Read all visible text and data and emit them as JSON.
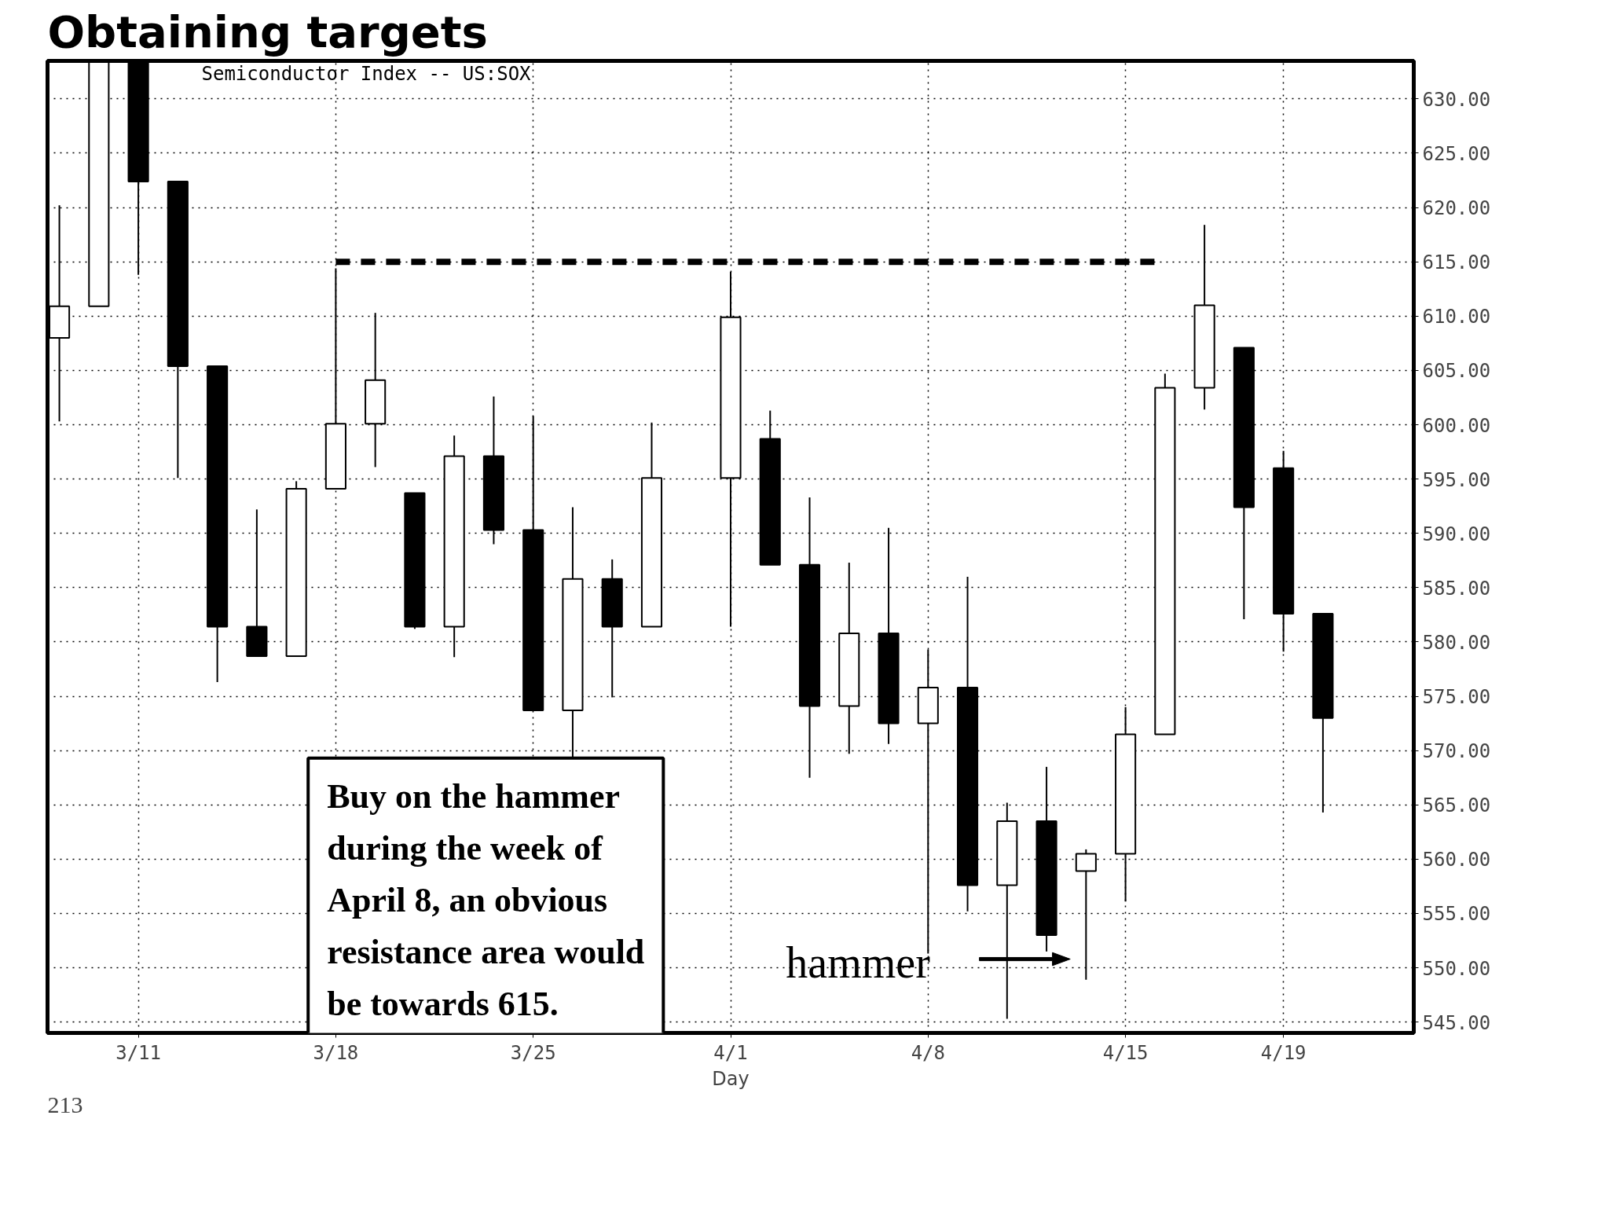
{
  "chart_data": {
    "type": "candlestick",
    "title": "Obtaining targets",
    "subtitle": "Semiconductor Index -- US:SOX",
    "xlabel": "Day",
    "categories": [
      null,
      null,
      "3/11",
      null,
      null,
      null,
      null,
      "3/18",
      null,
      null,
      null,
      null,
      "3/25",
      null,
      null,
      null,
      null,
      "4/1",
      null,
      null,
      null,
      null,
      "4/8",
      null,
      null,
      null,
      null,
      "4/15",
      null,
      null,
      null,
      "4/19",
      null
    ],
    "ohlc": [
      [
        608.0,
        620.2,
        600.3,
        610.9
      ],
      [
        610.9,
        633.4,
        610.9,
        633.4
      ],
      [
        633.4,
        633.4,
        613.8,
        622.4
      ],
      [
        622.4,
        622.4,
        595.1,
        605.4
      ],
      [
        605.4,
        605.4,
        576.3,
        581.4
      ],
      [
        581.4,
        592.2,
        578.7,
        578.7
      ],
      [
        578.7,
        594.8,
        578.7,
        594.1
      ],
      [
        594.1,
        614.4,
        594.1,
        600.1
      ],
      [
        600.1,
        610.3,
        596.1,
        604.1
      ],
      [
        593.7,
        593.7,
        581.2,
        581.4
      ],
      [
        581.4,
        599.0,
        578.6,
        597.1
      ],
      [
        597.1,
        602.6,
        589.0,
        590.3
      ],
      [
        590.3,
        600.8,
        573.7,
        573.7
      ],
      [
        573.7,
        592.4,
        569.3,
        585.8
      ],
      [
        585.8,
        587.6,
        574.9,
        581.4
      ],
      [
        581.4,
        600.2,
        581.4,
        595.1
      ],
      null,
      [
        595.1,
        614.1,
        581.4,
        609.9
      ],
      [
        598.7,
        601.3,
        587.1,
        587.1
      ],
      [
        587.1,
        593.3,
        567.5,
        574.1
      ],
      [
        574.1,
        587.3,
        569.7,
        580.8
      ],
      [
        580.8,
        590.5,
        570.6,
        572.5
      ],
      [
        572.5,
        579.3,
        551.3,
        575.8
      ],
      [
        575.8,
        586.0,
        555.2,
        557.6
      ],
      [
        557.6,
        565.2,
        545.3,
        563.5
      ],
      [
        563.5,
        568.5,
        551.5,
        553.0
      ],
      [
        558.9,
        560.9,
        548.9,
        560.5
      ],
      [
        560.5,
        574.0,
        556.1,
        571.5
      ],
      [
        571.5,
        604.7,
        571.5,
        603.4
      ],
      [
        603.4,
        618.4,
        601.4,
        611.0
      ],
      [
        607.1,
        607.1,
        582.1,
        592.4
      ],
      [
        596.0,
        597.6,
        579.1,
        582.6
      ],
      [
        582.6,
        582.6,
        564.3,
        573.0
      ]
    ],
    "ylim": [
      544,
      633.5
    ],
    "yticks": [
      {
        "value": 545,
        "label": "545.00"
      },
      {
        "value": 550,
        "label": "550.00"
      },
      {
        "value": 555,
        "label": "555.00"
      },
      {
        "value": 560,
        "label": "560.00"
      },
      {
        "value": 565,
        "label": "565.00"
      },
      {
        "value": 570,
        "label": "570.00"
      },
      {
        "value": 575,
        "label": "575.00"
      },
      {
        "value": 580,
        "label": "580.00"
      },
      {
        "value": 585,
        "label": "585.00"
      },
      {
        "value": 590,
        "label": "590.00"
      },
      {
        "value": 595,
        "label": "595.00"
      },
      {
        "value": 600,
        "label": "600.00"
      },
      {
        "value": 605,
        "label": "605.00"
      },
      {
        "value": 610,
        "label": "610.00"
      },
      {
        "value": 615,
        "label": "615.00"
      },
      {
        "value": 620,
        "label": "620.00"
      },
      {
        "value": 625,
        "label": "625.00"
      },
      {
        "value": 630,
        "label": "630.00"
      }
    ],
    "grid": true,
    "ref_lines": [
      {
        "axis": "y",
        "value": 615,
        "color": "#000000",
        "line_style": "dashed"
      }
    ],
    "annotations": [
      "Buy on the hammer\nduring the week of\nApril 8, an obvious\nresistance area would\nbe towards 615.",
      "hammer",
      "213"
    ]
  }
}
